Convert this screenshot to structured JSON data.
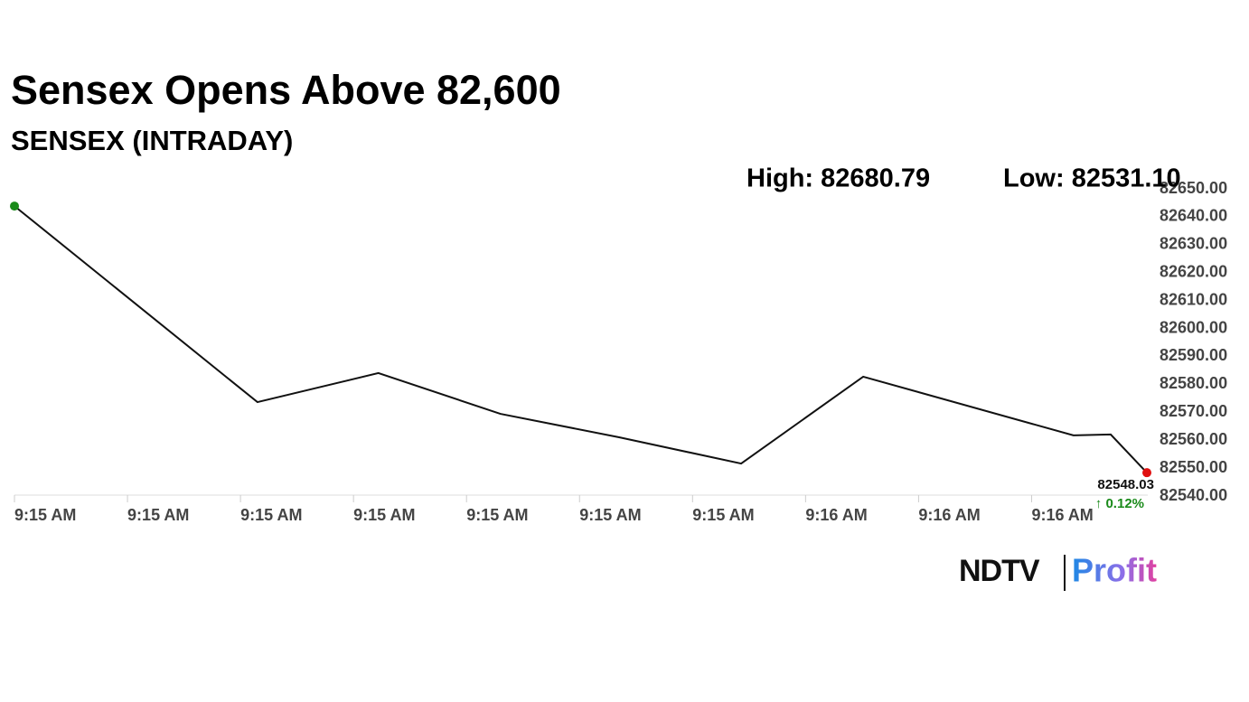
{
  "chart_data": {
    "type": "line",
    "title": "Sensex Opens Above 82,600",
    "subtitle": "SENSEX (INTRADAY)",
    "high_label": "High: 82680.79",
    "low_label": "Low: 82531.10",
    "x": [
      0,
      2.15,
      3.22,
      4.3,
      5.35,
      6.43,
      7.51,
      9.37,
      9.7,
      10.02
    ],
    "series": [
      {
        "name": "SENSEX",
        "color": "#111111",
        "values": [
          82643.5,
          82573.3,
          82583.7,
          82569.1,
          82560.7,
          82551.3,
          82582.4,
          82561.4,
          82561.7,
          82548.03
        ]
      }
    ],
    "start_color": "#1a8a1a",
    "end_color": "#e01010",
    "change_label": "↑ 0.12%",
    "change_color": "#1a8a1a",
    "xlim": [
      0,
      10.02
    ],
    "xticks": [
      {
        "value": 0,
        "label": "9:15 AM"
      },
      {
        "value": 1,
        "label": "9:15 AM"
      },
      {
        "value": 2,
        "label": "9:15 AM"
      },
      {
        "value": 3,
        "label": "9:15 AM"
      },
      {
        "value": 4,
        "label": "9:15 AM"
      },
      {
        "value": 5,
        "label": "9:15 AM"
      },
      {
        "value": 6,
        "label": "9:15 AM"
      },
      {
        "value": 7,
        "label": "9:16 AM"
      },
      {
        "value": 8,
        "label": "9:16 AM"
      },
      {
        "value": 9,
        "label": "9:16 AM"
      }
    ],
    "ylim": [
      82540,
      82650
    ],
    "yticks": [
      {
        "value": 82540,
        "label": "82540.00"
      },
      {
        "value": 82550,
        "label": "82550.00"
      },
      {
        "value": 82560,
        "label": "82560.00"
      },
      {
        "value": 82570,
        "label": "82570.00"
      },
      {
        "value": 82580,
        "label": "82580.00"
      },
      {
        "value": 82590,
        "label": "82590.00"
      },
      {
        "value": 82600,
        "label": "82600.00"
      },
      {
        "value": 82610,
        "label": "82610.00"
      },
      {
        "value": 82620,
        "label": "82620.00"
      },
      {
        "value": 82630,
        "label": "82630.00"
      },
      {
        "value": 82640,
        "label": "82640.00"
      },
      {
        "value": 82650,
        "label": "82650.00"
      }
    ],
    "logo": {
      "left": "NDTV",
      "right": "Profit"
    }
  }
}
